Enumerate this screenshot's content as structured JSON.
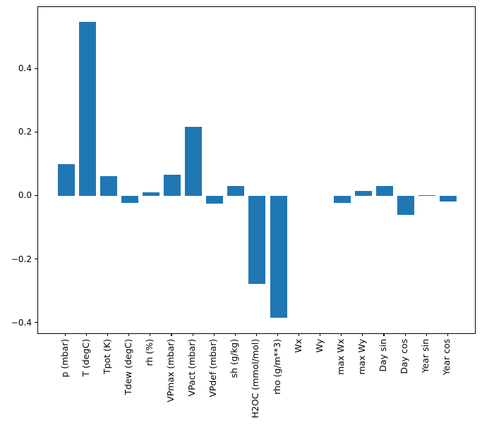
{
  "figure": {
    "background": "#ffffff",
    "axis_color": "#000000",
    "text_color": "#000000",
    "bar_color": "#1f77b4"
  },
  "chart_data": {
    "type": "bar",
    "title": "",
    "xlabel": "",
    "ylabel": "",
    "grid": false,
    "legend": null,
    "categories": [
      "p (mbar)",
      "T (degC)",
      "Tpot (K)",
      "Tdew (degC)",
      "rh (%)",
      "VPmax (mbar)",
      "VPact (mbar)",
      "VPdef (mbar)",
      "sh (g/kg)",
      "H2OC (mmol/mol)",
      "rho (g/m**3)",
      "Wx",
      "Wy",
      "max Wx",
      "max Wy",
      "Day sin",
      "Day cos",
      "Year sin",
      "Year cos"
    ],
    "values": [
      0.1,
      0.55,
      0.064,
      -0.021,
      0.012,
      0.068,
      0.219,
      -0.023,
      0.033,
      -0.277,
      -0.384,
      0.0,
      0.0,
      -0.021,
      0.016,
      0.033,
      -0.059,
      0.003,
      -0.017
    ],
    "yticks": [
      0.4,
      0.2,
      0.0,
      -0.2,
      -0.4
    ],
    "ytick_labels": [
      "0.4",
      "0.2",
      "0.0",
      "−0.2",
      "−0.4"
    ],
    "ylim": [
      -0.432,
      0.596
    ],
    "xtick_rotation": 90
  }
}
